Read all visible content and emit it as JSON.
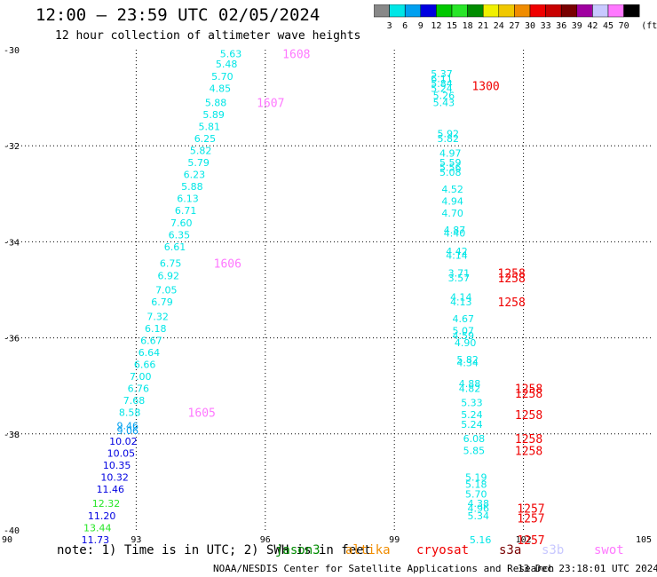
{
  "header": {
    "title": "12:00 – 23:59 UTC 02/05/2024",
    "subtitle": "12 hour collection of altimeter wave heights"
  },
  "colorbar": {
    "unit": "(ft)",
    "levels": [
      {
        "label": "3",
        "color": "#888888"
      },
      {
        "label": "6",
        "color": "#00e6e6"
      },
      {
        "label": "9",
        "color": "#00a0f0"
      },
      {
        "label": "12",
        "color": "#0000e0"
      },
      {
        "label": "15",
        "color": "#00c800"
      },
      {
        "label": "18",
        "color": "#28e628"
      },
      {
        "label": "21",
        "color": "#008c00"
      },
      {
        "label": "24",
        "color": "#f0f000"
      },
      {
        "label": "27",
        "color": "#f0c800"
      },
      {
        "label": "30",
        "color": "#f08c00"
      },
      {
        "label": "33",
        "color": "#f00000"
      },
      {
        "label": "36",
        "color": "#c80000"
      },
      {
        "label": "39",
        "color": "#780000"
      },
      {
        "label": "42",
        "color": "#a000a0"
      },
      {
        "label": "45",
        "color": "#c8c8ff"
      },
      {
        "label": "70",
        "color": "#ff78ff"
      },
      {
        "label": "",
        "color": "#000000"
      }
    ]
  },
  "footer": {
    "note": "note: 1) Time is in UTC; 2) SWH is in feet",
    "satellites": [
      {
        "name": "jason3",
        "color": "#008c00"
      },
      {
        "name": "altika",
        "color": "#f08c00"
      },
      {
        "name": "cryosat",
        "color": "#f00000"
      },
      {
        "name": "s3a",
        "color": "#780000"
      },
      {
        "name": "s3b",
        "color": "#c8c8ff"
      },
      {
        "name": "swot",
        "color": "#ff78ff"
      }
    ],
    "credit": "NOAA/NESDIS Center for Satellite Applications and Research",
    "timestamp": "13 Dec 23:18:01 UTC 2024"
  },
  "chart_data": {
    "type": "scatter",
    "xlim": [
      90,
      105
    ],
    "ylim": [
      -40,
      -30
    ],
    "x_ticks": [
      90,
      93,
      96,
      99,
      102,
      105
    ],
    "y_ticks": [
      -30,
      -32,
      -34,
      -36,
      -38,
      -40
    ],
    "grid": true,
    "tracks": [
      {
        "time_labels": [
          {
            "text": "1608",
            "x": 96.4,
            "y": -30.08
          },
          {
            "text": "1607",
            "x": 95.8,
            "y": -31.1
          },
          {
            "text": "1606",
            "x": 94.8,
            "y": -34.45
          },
          {
            "text": "1605",
            "x": 94.2,
            "y": -37.55
          }
        ],
        "color": "#ff78ff",
        "points": [
          {
            "x": 95.2,
            "y": -30.08,
            "v": "5.63",
            "c": "#00e6e6"
          },
          {
            "x": 95.1,
            "y": -30.3,
            "v": "5.48",
            "c": "#00e6e6"
          },
          {
            "x": 95.0,
            "y": -30.55,
            "v": "5.70",
            "c": "#00e6e6"
          },
          {
            "x": 94.95,
            "y": -30.8,
            "v": "4.85",
            "c": "#00e6e6"
          },
          {
            "x": 94.85,
            "y": -31.1,
            "v": "5.88",
            "c": "#00e6e6"
          },
          {
            "x": 94.8,
            "y": -31.35,
            "v": "5.89",
            "c": "#00e6e6"
          },
          {
            "x": 94.7,
            "y": -31.6,
            "v": "5.81",
            "c": "#00e6e6"
          },
          {
            "x": 94.6,
            "y": -31.85,
            "v": "6.25",
            "c": "#00e6e6"
          },
          {
            "x": 94.5,
            "y": -32.1,
            "v": "5.82",
            "c": "#00e6e6"
          },
          {
            "x": 94.45,
            "y": -32.35,
            "v": "5.79",
            "c": "#00e6e6"
          },
          {
            "x": 94.35,
            "y": -32.6,
            "v": "6.23",
            "c": "#00e6e6"
          },
          {
            "x": 94.3,
            "y": -32.85,
            "v": "5.88",
            "c": "#00e6e6"
          },
          {
            "x": 94.2,
            "y": -33.1,
            "v": "6.13",
            "c": "#00e6e6"
          },
          {
            "x": 94.15,
            "y": -33.35,
            "v": "6.71",
            "c": "#00e6e6"
          },
          {
            "x": 94.05,
            "y": -33.6,
            "v": "7.60",
            "c": "#00e6e6"
          },
          {
            "x": 94.0,
            "y": -33.85,
            "v": "6.35",
            "c": "#00e6e6"
          },
          {
            "x": 93.9,
            "y": -34.1,
            "v": "6.61",
            "c": "#00e6e6"
          },
          {
            "x": 93.8,
            "y": -34.45,
            "v": "6.75",
            "c": "#00e6e6"
          },
          {
            "x": 93.75,
            "y": -34.7,
            "v": "6.92",
            "c": "#00e6e6"
          },
          {
            "x": 93.7,
            "y": -35.0,
            "v": "7.05",
            "c": "#00e6e6"
          },
          {
            "x": 93.6,
            "y": -35.25,
            "v": "6.79",
            "c": "#00e6e6"
          },
          {
            "x": 93.5,
            "y": -35.55,
            "v": "7.32",
            "c": "#00e6e6"
          },
          {
            "x": 93.45,
            "y": -35.8,
            "v": "6.18",
            "c": "#00e6e6"
          },
          {
            "x": 93.35,
            "y": -36.05,
            "v": "6.67",
            "c": "#00e6e6"
          },
          {
            "x": 93.3,
            "y": -36.3,
            "v": "6.64",
            "c": "#00e6e6"
          },
          {
            "x": 93.2,
            "y": -36.55,
            "v": "6.66",
            "c": "#00e6e6"
          },
          {
            "x": 93.1,
            "y": -36.8,
            "v": "7.00",
            "c": "#00e6e6"
          },
          {
            "x": 93.05,
            "y": -37.05,
            "v": "6.76",
            "c": "#00e6e6"
          },
          {
            "x": 92.95,
            "y": -37.3,
            "v": "7.68",
            "c": "#00e6e6"
          },
          {
            "x": 92.85,
            "y": -37.55,
            "v": "8.58",
            "c": "#00e6e6"
          },
          {
            "x": 92.8,
            "y": -37.83,
            "v": "9.46",
            "c": "#00a0f0"
          },
          {
            "x": 92.8,
            "y": -37.93,
            "v": "9.06",
            "c": "#00a0f0"
          },
          {
            "x": 92.7,
            "y": -38.15,
            "v": "10.02",
            "c": "#0000e0"
          },
          {
            "x": 92.65,
            "y": -38.4,
            "v": "10.05",
            "c": "#0000e0"
          },
          {
            "x": 92.55,
            "y": -38.65,
            "v": "10.35",
            "c": "#0000e0"
          },
          {
            "x": 92.5,
            "y": -38.9,
            "v": "10.32",
            "c": "#0000e0"
          },
          {
            "x": 92.4,
            "y": -39.15,
            "v": "11.46",
            "c": "#0000e0"
          },
          {
            "x": 92.3,
            "y": -39.45,
            "v": "12.32",
            "c": "#28e628"
          },
          {
            "x": 92.2,
            "y": -39.7,
            "v": "11.20",
            "c": "#0000e0"
          },
          {
            "x": 92.1,
            "y": -39.95,
            "v": "13.44",
            "c": "#28e628"
          },
          {
            "x": 92.05,
            "y": -40.2,
            "v": "11.73",
            "c": "#0000e0"
          }
        ]
      },
      {
        "time_labels": [
          {
            "text": "1300",
            "x": 100.8,
            "y": -30.75
          },
          {
            "text": "1258",
            "x": 101.4,
            "y": -34.65
          },
          {
            "text": "1258",
            "x": 101.4,
            "y": -34.75
          },
          {
            "text": "1258",
            "x": 101.4,
            "y": -35.25
          },
          {
            "text": "1258",
            "x": 101.8,
            "y": -37.05
          },
          {
            "text": "1258",
            "x": 101.8,
            "y": -37.15
          },
          {
            "text": "1258",
            "x": 101.8,
            "y": -37.6
          },
          {
            "text": "1258",
            "x": 101.8,
            "y": -38.1
          },
          {
            "text": "1258",
            "x": 101.8,
            "y": -38.35
          },
          {
            "text": "1257",
            "x": 101.85,
            "y": -39.55
          },
          {
            "text": "1257",
            "x": 101.85,
            "y": -39.75
          },
          {
            "text": "1257",
            "x": 101.85,
            "y": -40.2
          }
        ],
        "color": "#f00000",
        "points": [
          {
            "x": 100.1,
            "y": -30.5,
            "v": "5.37",
            "c": "#00e6e6"
          },
          {
            "x": 100.1,
            "y": -30.6,
            "v": "6.11",
            "c": "#00e6e6"
          },
          {
            "x": 100.1,
            "y": -30.7,
            "v": "5.84",
            "c": "#00e6e6"
          },
          {
            "x": 100.1,
            "y": -30.8,
            "v": "5.24",
            "c": "#00e6e6"
          },
          {
            "x": 100.15,
            "y": -30.95,
            "v": "5.26",
            "c": "#00e6e6"
          },
          {
            "x": 100.15,
            "y": -31.1,
            "v": "5.43",
            "c": "#00e6e6"
          },
          {
            "x": 100.25,
            "y": -31.75,
            "v": "5.92",
            "c": "#00e6e6"
          },
          {
            "x": 100.25,
            "y": -31.85,
            "v": "5.82",
            "c": "#00e6e6"
          },
          {
            "x": 100.3,
            "y": -32.15,
            "v": "4.97",
            "c": "#00e6e6"
          },
          {
            "x": 100.3,
            "y": -32.35,
            "v": "5.59",
            "c": "#00e6e6"
          },
          {
            "x": 100.3,
            "y": -32.45,
            "v": "5.56",
            "c": "#00e6e6"
          },
          {
            "x": 100.3,
            "y": -32.55,
            "v": "5.08",
            "c": "#00e6e6"
          },
          {
            "x": 100.35,
            "y": -32.9,
            "v": "4.52",
            "c": "#00e6e6"
          },
          {
            "x": 100.35,
            "y": -33.15,
            "v": "4.94",
            "c": "#00e6e6"
          },
          {
            "x": 100.35,
            "y": -33.4,
            "v": "4.70",
            "c": "#00e6e6"
          },
          {
            "x": 100.4,
            "y": -33.75,
            "v": "4.87",
            "c": "#00e6e6"
          },
          {
            "x": 100.4,
            "y": -33.82,
            "v": "4.40",
            "c": "#00e6e6"
          },
          {
            "x": 100.45,
            "y": -34.2,
            "v": "4.42",
            "c": "#00e6e6"
          },
          {
            "x": 100.45,
            "y": -34.28,
            "v": "4.14",
            "c": "#00e6e6"
          },
          {
            "x": 100.5,
            "y": -34.65,
            "v": "3.71",
            "c": "#00e6e6"
          },
          {
            "x": 100.5,
            "y": -34.75,
            "v": "3.57",
            "c": "#00e6e6"
          },
          {
            "x": 100.55,
            "y": -35.15,
            "v": "4.14",
            "c": "#00e6e6"
          },
          {
            "x": 100.55,
            "y": -35.25,
            "v": "4.13",
            "c": "#00e6e6"
          },
          {
            "x": 100.6,
            "y": -35.6,
            "v": "4.67",
            "c": "#00e6e6"
          },
          {
            "x": 100.6,
            "y": -35.85,
            "v": "5.07",
            "c": "#00e6e6"
          },
          {
            "x": 100.6,
            "y": -35.95,
            "v": "4.59",
            "c": "#00e6e6"
          },
          {
            "x": 100.65,
            "y": -36.1,
            "v": "4.90",
            "c": "#00e6e6"
          },
          {
            "x": 100.7,
            "y": -36.45,
            "v": "5.82",
            "c": "#00e6e6"
          },
          {
            "x": 100.7,
            "y": -36.52,
            "v": "4.34",
            "c": "#00e6e6"
          },
          {
            "x": 100.75,
            "y": -36.95,
            "v": "4.88",
            "c": "#00e6e6"
          },
          {
            "x": 100.75,
            "y": -37.05,
            "v": "4.82",
            "c": "#00e6e6"
          },
          {
            "x": 100.8,
            "y": -37.35,
            "v": "5.33",
            "c": "#00e6e6"
          },
          {
            "x": 100.8,
            "y": -37.6,
            "v": "5.24",
            "c": "#00e6e6"
          },
          {
            "x": 100.8,
            "y": -37.8,
            "v": "5.24",
            "c": "#00e6e6"
          },
          {
            "x": 100.85,
            "y": -38.1,
            "v": "6.08",
            "c": "#00e6e6"
          },
          {
            "x": 100.85,
            "y": -38.35,
            "v": "5.85",
            "c": "#00e6e6"
          },
          {
            "x": 100.9,
            "y": -38.9,
            "v": "5.19",
            "c": "#00e6e6"
          },
          {
            "x": 100.9,
            "y": -39.05,
            "v": "5.18",
            "c": "#00e6e6"
          },
          {
            "x": 100.9,
            "y": -39.25,
            "v": "5.70",
            "c": "#00e6e6"
          },
          {
            "x": 100.95,
            "y": -39.45,
            "v": "4.38",
            "c": "#00e6e6"
          },
          {
            "x": 100.95,
            "y": -39.55,
            "v": "4.96",
            "c": "#00e6e6"
          },
          {
            "x": 100.95,
            "y": -39.7,
            "v": "5.34",
            "c": "#00e6e6"
          },
          {
            "x": 101.0,
            "y": -40.2,
            "v": "5.16",
            "c": "#00e6e6"
          }
        ]
      }
    ]
  }
}
